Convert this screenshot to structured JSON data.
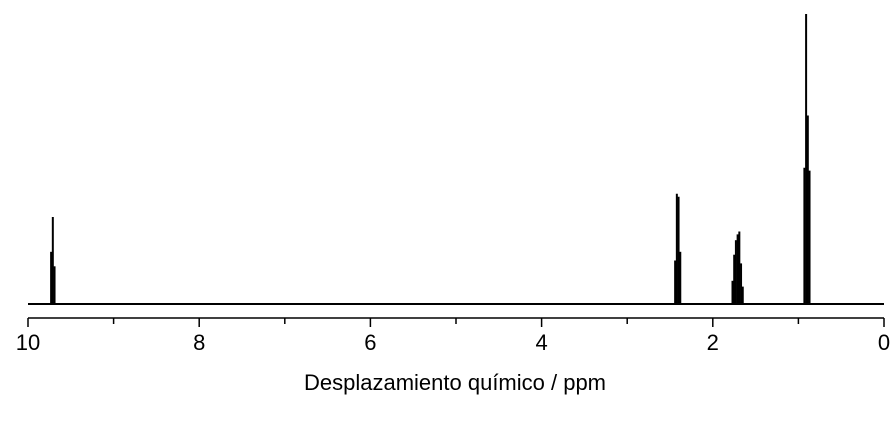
{
  "chart_data": {
    "type": "line",
    "title": "",
    "xlabel": "Desplazamiento químico / ppm",
    "ylabel": "",
    "xlim": [
      10,
      0
    ],
    "x_reversed": true,
    "ylim": [
      0,
      1
    ],
    "grid": false,
    "legend": "none",
    "x_ticks": [
      {
        "value": 10,
        "label": "10"
      },
      {
        "value": 8,
        "label": "8"
      },
      {
        "value": 6,
        "label": "6"
      },
      {
        "value": 4,
        "label": "4"
      },
      {
        "value": 2,
        "label": "2"
      },
      {
        "value": 0,
        "label": "0"
      }
    ],
    "x_minor_ticks": [
      9,
      7,
      5,
      3,
      1
    ],
    "peaks": [
      {
        "x": 9.73,
        "y": 0.18
      },
      {
        "x": 9.71,
        "y": 0.3
      },
      {
        "x": 9.69,
        "y": 0.13
      },
      {
        "x": 2.44,
        "y": 0.15
      },
      {
        "x": 2.42,
        "y": 0.38
      },
      {
        "x": 2.4,
        "y": 0.37
      },
      {
        "x": 2.38,
        "y": 0.18
      },
      {
        "x": 1.77,
        "y": 0.08
      },
      {
        "x": 1.75,
        "y": 0.17
      },
      {
        "x": 1.73,
        "y": 0.22
      },
      {
        "x": 1.71,
        "y": 0.24
      },
      {
        "x": 1.69,
        "y": 0.25
      },
      {
        "x": 1.67,
        "y": 0.14
      },
      {
        "x": 1.65,
        "y": 0.06
      },
      {
        "x": 0.93,
        "y": 0.47
      },
      {
        "x": 0.91,
        "y": 1.0
      },
      {
        "x": 0.89,
        "y": 0.65
      },
      {
        "x": 0.87,
        "y": 0.46
      }
    ]
  }
}
